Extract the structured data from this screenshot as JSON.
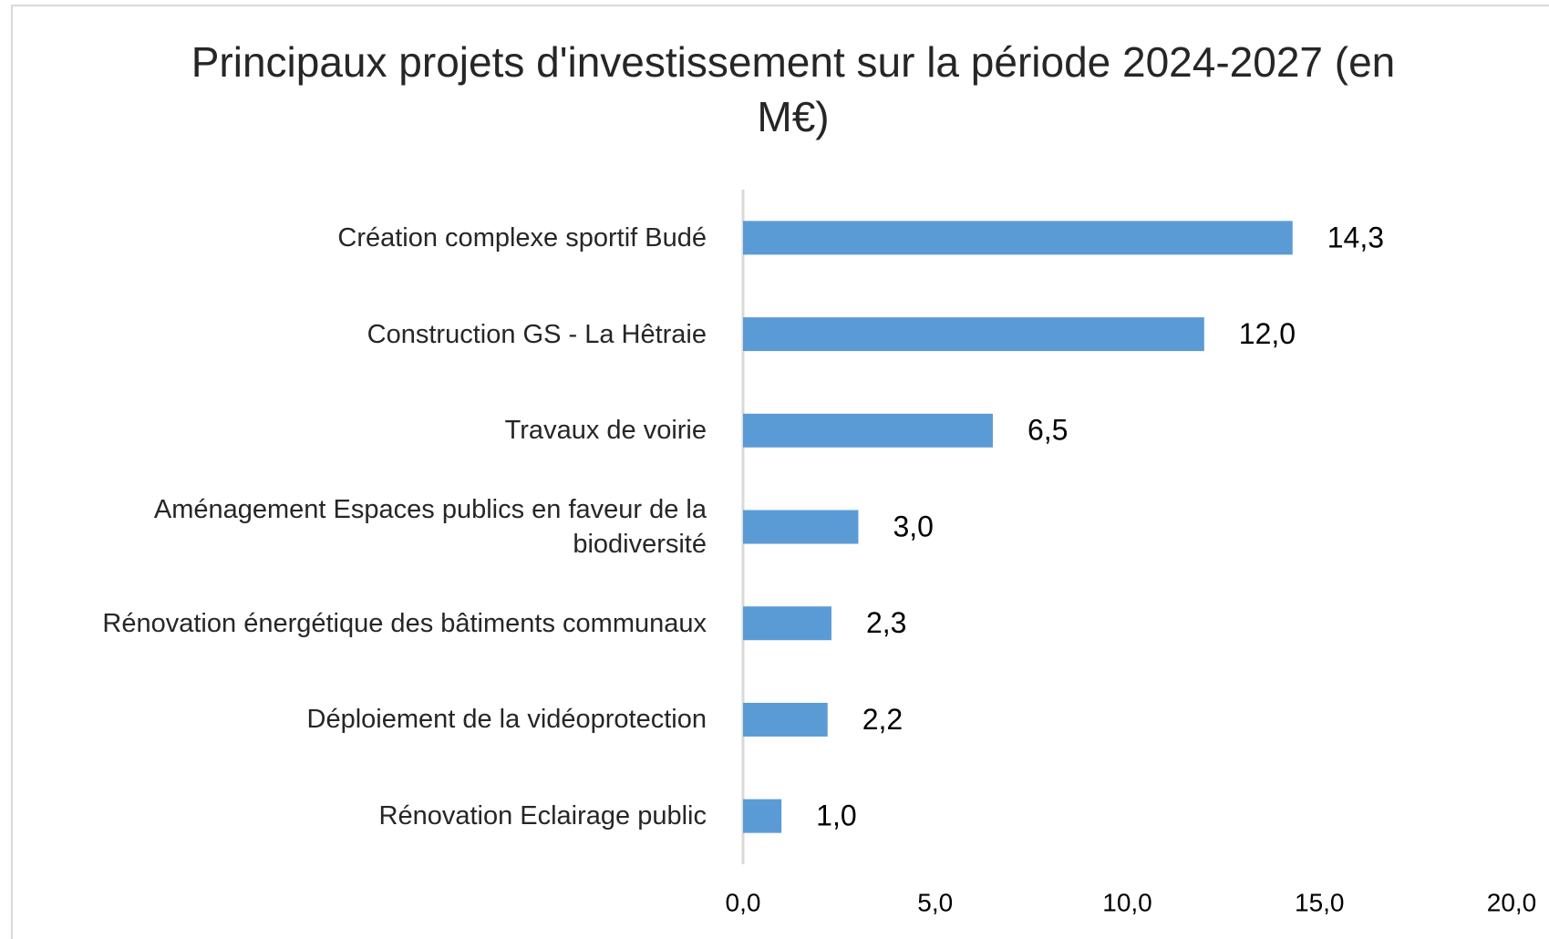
{
  "chart_data": {
    "type": "bar",
    "orientation": "horizontal",
    "title": "Principaux projets d'investissement sur la période 2024-2027 (en M€)",
    "categories": [
      "Création complexe sportif Budé",
      "Construction GS - La Hêtraie",
      "Travaux de voirie",
      "Aménagement Espaces publics en faveur de la biodiversité",
      "Rénovation énergétique des bâtiments communaux",
      "Déploiement de la vidéoprotection",
      "Rénovation Eclairage public"
    ],
    "values": [
      14.3,
      12.0,
      6.5,
      3.0,
      2.3,
      2.2,
      1.0
    ],
    "value_labels": [
      "14,3",
      "12,0",
      "6,5",
      "3,0",
      "2,3",
      "2,2",
      "1,0"
    ],
    "color": "#5b9bd5",
    "xlim": [
      0,
      20
    ],
    "xticks": [
      {
        "value": 0,
        "label": "0,0"
      },
      {
        "value": 5,
        "label": "5,0"
      },
      {
        "value": 10,
        "label": "10,0"
      },
      {
        "value": 15,
        "label": "15,0"
      },
      {
        "value": 20,
        "label": "20,0"
      }
    ],
    "grid": false
  }
}
